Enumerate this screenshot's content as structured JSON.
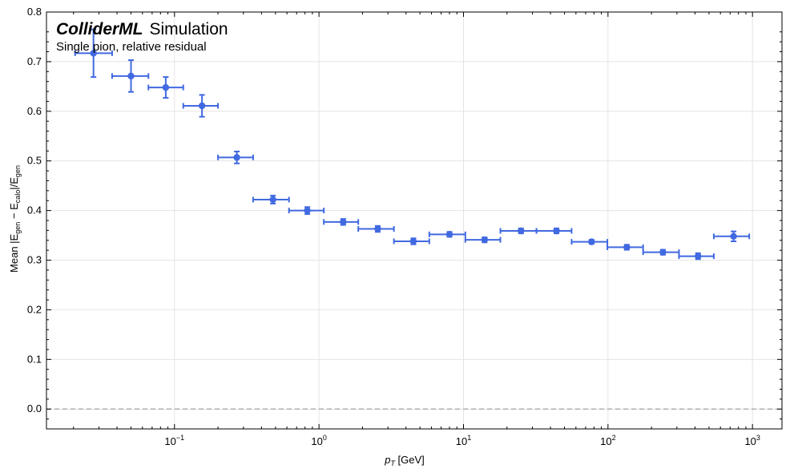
{
  "chart_data": {
    "type": "scatter",
    "title": "ColliderML",
    "title_suffix": "Simulation",
    "subtitle": "Single pion, relative residual",
    "xlabel_main": "p",
    "xlabel_sub": "T",
    "xlabel_unit": " [GeV]",
    "ylabel_prefix": "Mean |E",
    "ylabel_gen": "gen",
    "ylabel_minus": " − E",
    "ylabel_calo": "calo",
    "ylabel_slash": "|/E",
    "xscale": "log",
    "xlim": [
      0.013,
      1600
    ],
    "ylim": [
      -0.04,
      0.8
    ],
    "grid": true,
    "reference_line_y": 0.0,
    "color": "#4169e1",
    "x_ticks": [
      {
        "value": 0.1,
        "base": "10",
        "exp": "−1"
      },
      {
        "value": 1,
        "base": "10",
        "exp": "0"
      },
      {
        "value": 10,
        "base": "10",
        "exp": "1"
      },
      {
        "value": 100,
        "base": "10",
        "exp": "2"
      },
      {
        "value": 1000,
        "base": "10",
        "exp": "3"
      }
    ],
    "y_ticks": [
      "0.0",
      "0.1",
      "0.2",
      "0.3",
      "0.4",
      "0.5",
      "0.6",
      "0.7",
      "0.8"
    ],
    "series": [
      {
        "name": "Single pion",
        "points": [
          {
            "x": 0.0275,
            "x_lo": 0.0205,
            "x_hi": 0.037,
            "y": 0.717,
            "y_err": 0.048
          },
          {
            "x": 0.05,
            "x_lo": 0.037,
            "x_hi": 0.066,
            "y": 0.671,
            "y_err": 0.032
          },
          {
            "x": 0.087,
            "x_lo": 0.066,
            "x_hi": 0.115,
            "y": 0.648,
            "y_err": 0.021
          },
          {
            "x": 0.155,
            "x_lo": 0.115,
            "x_hi": 0.2,
            "y": 0.611,
            "y_err": 0.022
          },
          {
            "x": 0.27,
            "x_lo": 0.2,
            "x_hi": 0.35,
            "y": 0.507,
            "y_err": 0.012
          },
          {
            "x": 0.48,
            "x_lo": 0.35,
            "x_hi": 0.62,
            "y": 0.422,
            "y_err": 0.008
          },
          {
            "x": 0.83,
            "x_lo": 0.62,
            "x_hi": 1.08,
            "y": 0.4,
            "y_err": 0.007
          },
          {
            "x": 1.47,
            "x_lo": 1.08,
            "x_hi": 1.87,
            "y": 0.377,
            "y_err": 0.006
          },
          {
            "x": 2.55,
            "x_lo": 1.87,
            "x_hi": 3.3,
            "y": 0.363,
            "y_err": 0.006
          },
          {
            "x": 4.5,
            "x_lo": 3.3,
            "x_hi": 5.8,
            "y": 0.338,
            "y_err": 0.006
          },
          {
            "x": 8.0,
            "x_lo": 5.8,
            "x_hi": 10.3,
            "y": 0.352,
            "y_err": 0.005
          },
          {
            "x": 14.0,
            "x_lo": 10.3,
            "x_hi": 18.0,
            "y": 0.341,
            "y_err": 0.005
          },
          {
            "x": 25.0,
            "x_lo": 18.0,
            "x_hi": 32.0,
            "y": 0.359,
            "y_err": 0.005
          },
          {
            "x": 44.0,
            "x_lo": 32.0,
            "x_hi": 56.0,
            "y": 0.359,
            "y_err": 0.005
          },
          {
            "x": 77.0,
            "x_lo": 56.0,
            "x_hi": 99.0,
            "y": 0.337,
            "y_err": 0.004
          },
          {
            "x": 135.0,
            "x_lo": 99.0,
            "x_hi": 175.0,
            "y": 0.326,
            "y_err": 0.005
          },
          {
            "x": 240.0,
            "x_lo": 175.0,
            "x_hi": 310.0,
            "y": 0.316,
            "y_err": 0.005
          },
          {
            "x": 420.0,
            "x_lo": 310.0,
            "x_hi": 540.0,
            "y": 0.308,
            "y_err": 0.006
          },
          {
            "x": 740.0,
            "x_lo": 540.0,
            "x_hi": 950.0,
            "y": 0.348,
            "y_err": 0.01
          }
        ]
      }
    ]
  }
}
